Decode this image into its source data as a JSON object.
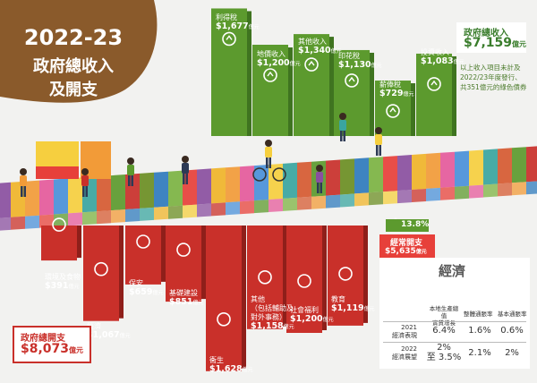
{
  "chart_data": [
    {
      "type": "bar",
      "title": "政府總收入",
      "total": "$7,159",
      "unit": "億元",
      "categories": [
        "利得稅",
        "地價收入",
        "其他收入",
        "印花稅",
        "薪俸稅",
        "投資收入"
      ],
      "values": [
        1677,
        1200,
        1340,
        1130,
        729,
        1083
      ],
      "color": "#5c9a2e",
      "note": [
        "以上收入項目未計及",
        "2022/23年度發行、",
        "共351億元的綠色債券"
      ]
    },
    {
      "type": "bar",
      "title": "政府總開支",
      "total": "$8,073",
      "unit": "億元",
      "categories": [
        "環境及食物",
        "經濟",
        "保安",
        "基礎建設",
        "衞生",
        "其他（包括輔助及對外事務）",
        "社會福利",
        "教育"
      ],
      "values": [
        391,
        1067,
        659,
        851,
        1628,
        1158,
        1200,
        1119
      ],
      "color": "#c9302a"
    },
    {
      "type": "table",
      "title": "經濟",
      "columns": [
        "本地生產總值實質增長",
        "整體通脹率",
        "基本通脹率"
      ],
      "rows": [
        {
          "label": "2021\n經濟表現",
          "values": [
            "6.4%",
            "1.6%",
            "0.6%"
          ]
        },
        {
          "label": "2022\n經濟展望",
          "values": [
            "2%\n至 3.5%",
            "2.1%",
            "2%"
          ]
        }
      ]
    }
  ],
  "header": {
    "year": "2022-23",
    "line1": "政府總收入",
    "line2": "及開支"
  },
  "revenue": {
    "total_title": "政府總收入",
    "total_value": "$7,159",
    "unit": "億元",
    "bars": [
      {
        "name": "利得稅",
        "value": "$1,677",
        "icon": "chart-icon"
      },
      {
        "name": "地價收入",
        "value": "$1,200",
        "icon": "land-icon"
      },
      {
        "name": "其他收入",
        "value": "$1,340",
        "icon": "money-bag-icon"
      },
      {
        "name": "印花稅",
        "value": "$1,130",
        "icon": "stamp-icon"
      },
      {
        "name": "薪俸稅",
        "value": "$729",
        "icon": "salary-icon"
      },
      {
        "name": "投資收入",
        "value": "$1,083",
        "icon": "growth-icon"
      }
    ],
    "note": [
      "以上收入項目未計及",
      "2022/23年度發行、",
      "共351億元的綠色債券"
    ]
  },
  "expenditure": {
    "total_title": "政府總開支",
    "total_value": "$8,073",
    "unit": "億元",
    "bars": [
      {
        "name": "環境及食物",
        "value": "$391",
        "icon": "tree-icon"
      },
      {
        "name": "經濟",
        "value": "$1,067",
        "icon": "coin-icon"
      },
      {
        "name": "保安",
        "value": "$659",
        "icon": "police-icon"
      },
      {
        "name": "基礎建設",
        "value": "$851",
        "icon": "excavator-icon"
      },
      {
        "name": "衞生",
        "value": "$1,628",
        "icon": "medical-icon"
      },
      {
        "name": "其他",
        "sub": [
          "（包括輔助及",
          "對外事務）"
        ],
        "value": "$1,158",
        "icon": "globe-icon"
      },
      {
        "name": "社會福利",
        "value": "$1,200",
        "icon": "heart-icon"
      },
      {
        "name": "教育",
        "value": "$1,119",
        "icon": "book-icon"
      }
    ]
  },
  "recurrent": {
    "growth": "13.8%",
    "title": "經常開支",
    "value": "$5,635",
    "unit": "億元"
  },
  "economy": {
    "title": "經濟",
    "col1": [
      "本地生產總值",
      "實質增長"
    ],
    "col2": "整體通脹率",
    "col3": "基本通脹率",
    "row1_label": [
      "2021",
      "經濟表現"
    ],
    "row1": [
      "6.4%",
      "1.6%",
      "0.6%"
    ],
    "row2_label": [
      "2022",
      "經濟展望"
    ],
    "row2a": "2%",
    "row2b": "至 3.5%",
    "row2": [
      "2.1%",
      "2%"
    ]
  }
}
